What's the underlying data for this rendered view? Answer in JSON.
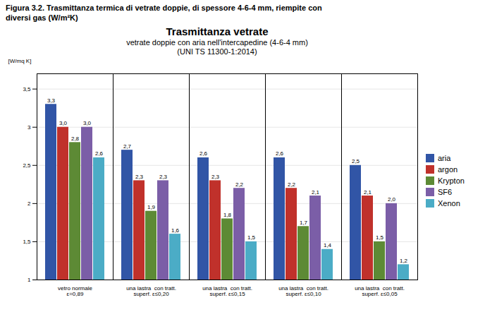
{
  "chart_data": {
    "type": "bar",
    "caption": [
      "Figura 3.2.  Trasmittanza termica di vetrate doppie, di spessore 4-6-4 mm, riempite con",
      "diversi gas (W/m²K)"
    ],
    "title": "Trasmittanza vetrate",
    "subtitle": [
      "vetrate doppie con aria nell'intercapedine (4-6-4 mm)",
      "(UNI TS 11300-1:2014)"
    ],
    "ylabel": "[W/mq K]",
    "categories": [
      "vetro normale\nε=0,89",
      "una lastra  con tratt.\nsuperf. ε≤0,20",
      "una lastra  con tratt.\nsuperf. ε≤0,15",
      "una lastra  con tratt.\nsuperf. ε≤0,10",
      "una lastra  con tratt.\nsuperf. ε≤0,05"
    ],
    "series": [
      {
        "name": "aria",
        "color": "#3155A6",
        "values": [
          3.3,
          2.7,
          2.6,
          2.6,
          2.5
        ],
        "value_labels": [
          "3,3",
          "2,7",
          "2,6",
          "2,6",
          "2,5"
        ]
      },
      {
        "name": "argon",
        "color": "#C0312B",
        "values": [
          3.0,
          2.3,
          2.3,
          2.2,
          2.1
        ],
        "value_labels": [
          "3,0",
          "2,3",
          "2,3",
          "2,2",
          "2,1"
        ]
      },
      {
        "name": "Krypton",
        "color": "#5D8A35",
        "values": [
          2.8,
          1.9,
          1.8,
          1.7,
          1.5
        ],
        "value_labels": [
          "2,8",
          "1,9",
          "1,8",
          "1,7",
          "1,5"
        ]
      },
      {
        "name": "SF6",
        "color": "#7B5EA7",
        "values": [
          3.0,
          2.3,
          2.2,
          2.1,
          2.0
        ],
        "value_labels": [
          "3,0",
          "2,3",
          "2,2",
          "2,1",
          "2,0"
        ]
      },
      {
        "name": "Xenon",
        "color": "#4BACC6",
        "values": [
          2.6,
          1.6,
          1.5,
          1.4,
          1.2
        ],
        "value_labels": [
          "2,6",
          "1,6",
          "1,5",
          "1,4",
          "1,2"
        ]
      }
    ],
    "ylim": [
      1.0,
      3.7
    ],
    "yticks": [
      1,
      {
        "value": 1.5,
        "label": "1,5"
      },
      2,
      {
        "value": 2.5,
        "label": "2,5"
      },
      3,
      {
        "value": 3.5,
        "label": "3,5"
      }
    ],
    "grid": true,
    "legend": "right",
    "data_labels": true
  }
}
